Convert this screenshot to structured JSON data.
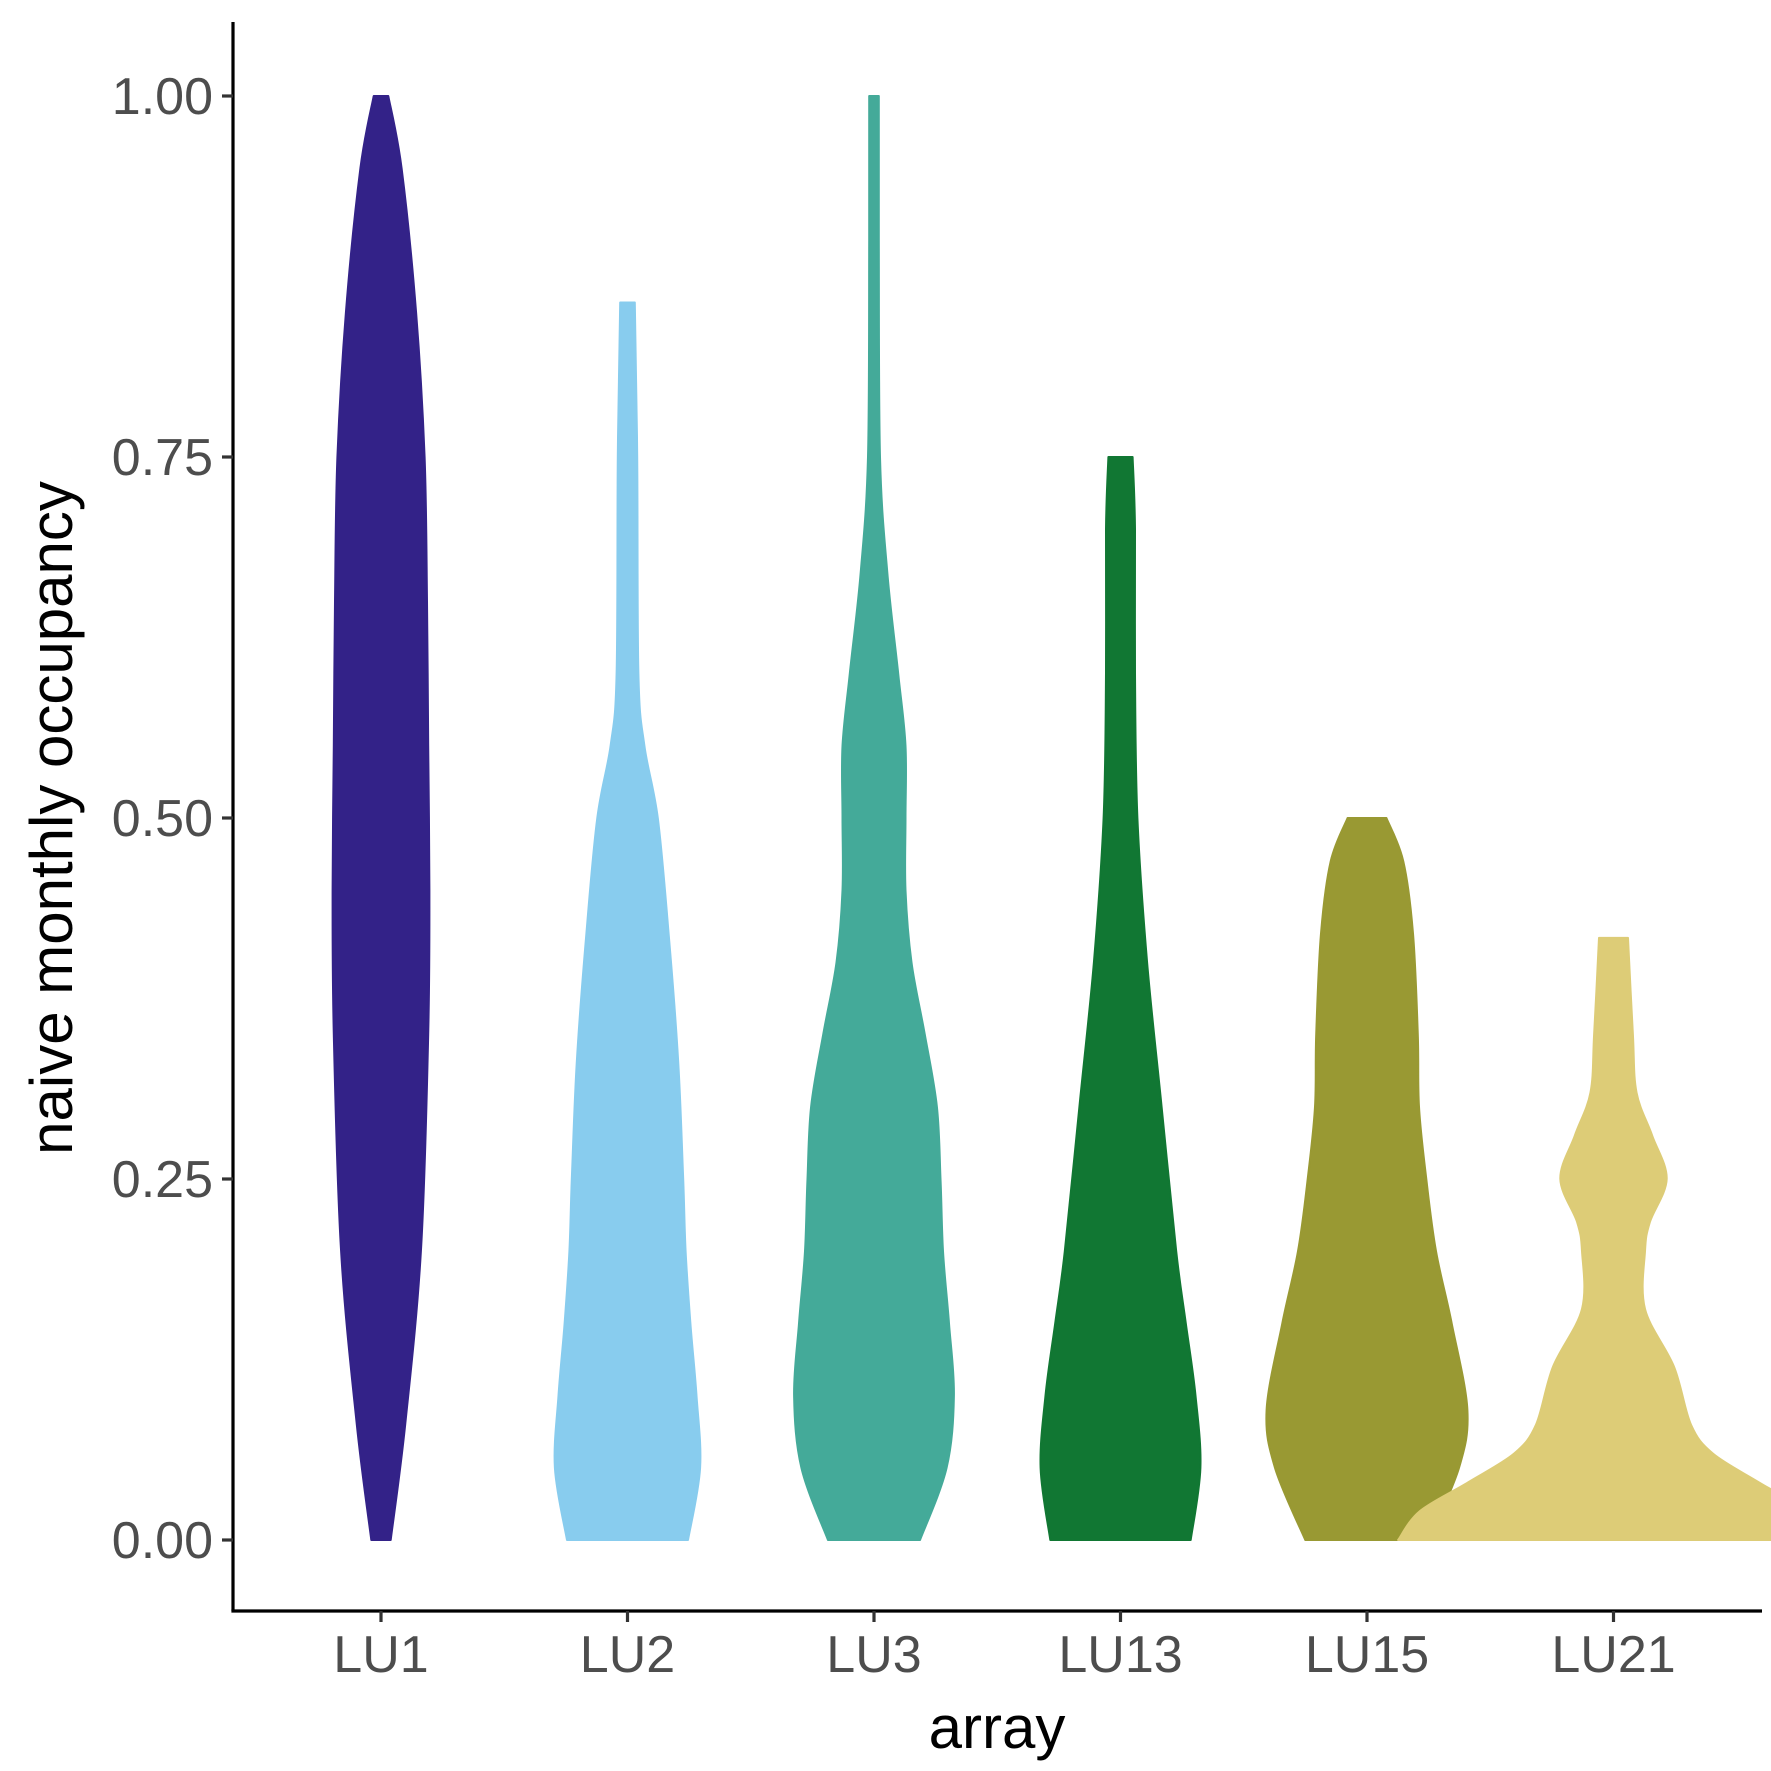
{
  "chart_data": {
    "type": "violin",
    "xlabel": "array",
    "ylabel": "naive monthly occupancy",
    "ylim": [
      -0.05,
      1.05
    ],
    "yticks": [
      "0.00",
      "0.25",
      "0.50",
      "0.75",
      "1.00"
    ],
    "grid": false,
    "legend": "none",
    "categories": [
      "LU1",
      "LU2",
      "LU3",
      "LU13",
      "LU15",
      "LU21"
    ],
    "colors": [
      "#332288",
      "#88CCEE",
      "#44AA99",
      "#117733",
      "#999933",
      "#DDCC77"
    ],
    "series": [
      {
        "category": "LU1",
        "min": 0,
        "max": 1.0,
        "profile": [
          [
            0,
            0.008
          ],
          [
            0.08,
            0.02
          ],
          [
            0.2,
            0.033
          ],
          [
            0.35,
            0.039
          ],
          [
            0.45,
            0.04
          ],
          [
            0.55,
            0.039
          ],
          [
            0.65,
            0.038
          ],
          [
            0.75,
            0.036
          ],
          [
            0.85,
            0.029
          ],
          [
            0.95,
            0.017
          ],
          [
            1.0,
            0.006
          ]
        ]
      },
      {
        "category": "LU2",
        "min": 0,
        "max": 0.857,
        "profile": [
          [
            0,
            0.05
          ],
          [
            0.05,
            0.06
          ],
          [
            0.1,
            0.057
          ],
          [
            0.15,
            0.052
          ],
          [
            0.2,
            0.048
          ],
          [
            0.25,
            0.046
          ],
          [
            0.33,
            0.042
          ],
          [
            0.42,
            0.034
          ],
          [
            0.5,
            0.025
          ],
          [
            0.55,
            0.014
          ],
          [
            0.6,
            0.009
          ],
          [
            0.75,
            0.008
          ],
          [
            0.857,
            0.006
          ]
        ]
      },
      {
        "category": "LU3",
        "min": 0,
        "max": 1.0,
        "profile": [
          [
            0,
            0.038
          ],
          [
            0.05,
            0.06
          ],
          [
            0.1,
            0.066
          ],
          [
            0.15,
            0.062
          ],
          [
            0.2,
            0.057
          ],
          [
            0.25,
            0.055
          ],
          [
            0.3,
            0.052
          ],
          [
            0.35,
            0.042
          ],
          [
            0.4,
            0.031
          ],
          [
            0.45,
            0.026
          ],
          [
            0.5,
            0.026
          ],
          [
            0.55,
            0.026
          ],
          [
            0.6,
            0.02
          ],
          [
            0.67,
            0.011
          ],
          [
            0.75,
            0.005
          ],
          [
            0.9,
            0.004
          ],
          [
            1.0,
            0.004
          ]
        ]
      },
      {
        "category": "LU13",
        "min": 0,
        "max": 0.75,
        "profile": [
          [
            0,
            0.058
          ],
          [
            0.05,
            0.066
          ],
          [
            0.1,
            0.062
          ],
          [
            0.15,
            0.054
          ],
          [
            0.2,
            0.046
          ],
          [
            0.3,
            0.034
          ],
          [
            0.4,
            0.022
          ],
          [
            0.5,
            0.014
          ],
          [
            0.6,
            0.012
          ],
          [
            0.7,
            0.012
          ],
          [
            0.75,
            0.01
          ]
        ]
      },
      {
        "category": "LU15",
        "min": 0,
        "max": 0.5,
        "profile": [
          [
            0,
            0.051
          ],
          [
            0.05,
            0.076
          ],
          [
            0.09,
            0.083
          ],
          [
            0.15,
            0.07
          ],
          [
            0.2,
            0.057
          ],
          [
            0.25,
            0.049
          ],
          [
            0.3,
            0.043
          ],
          [
            0.35,
            0.042
          ],
          [
            0.42,
            0.038
          ],
          [
            0.47,
            0.03
          ],
          [
            0.5,
            0.016
          ]
        ]
      },
      {
        "category": "LU21",
        "min": 0,
        "max": 0.417,
        "profile": [
          [
            0,
            0.178
          ],
          [
            0.02,
            0.16
          ],
          [
            0.04,
            0.12
          ],
          [
            0.06,
            0.082
          ],
          [
            0.08,
            0.064
          ],
          [
            0.12,
            0.05
          ],
          [
            0.16,
            0.026
          ],
          [
            0.2,
            0.026
          ],
          [
            0.22,
            0.03
          ],
          [
            0.25,
            0.044
          ],
          [
            0.28,
            0.032
          ],
          [
            0.31,
            0.019
          ],
          [
            0.35,
            0.016
          ],
          [
            0.417,
            0.012
          ]
        ]
      }
    ]
  }
}
